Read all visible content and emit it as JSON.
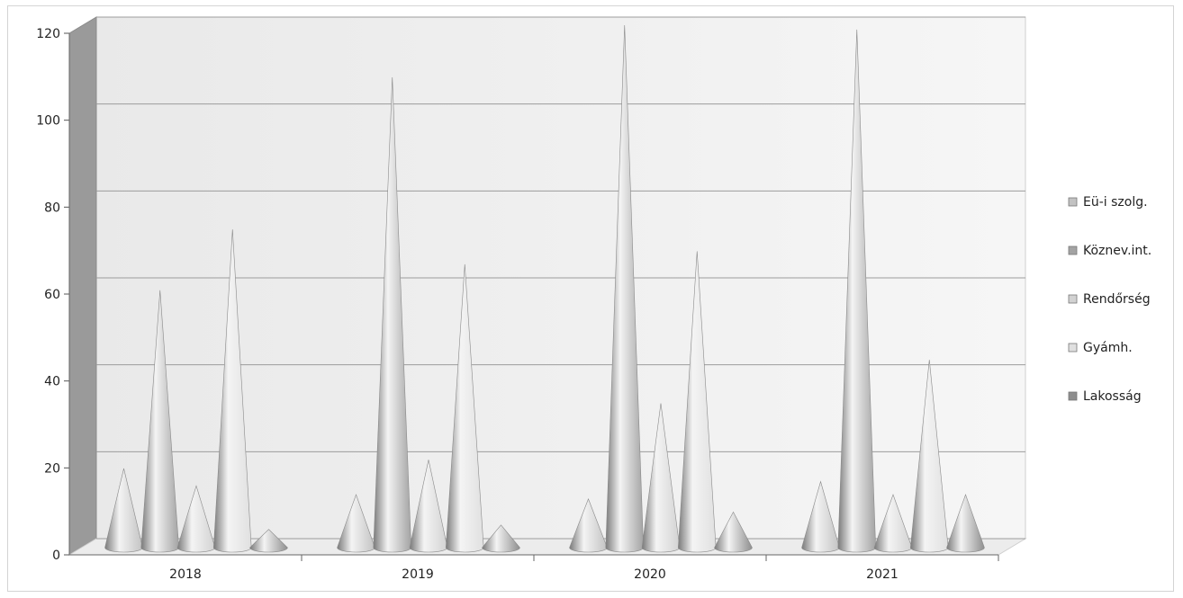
{
  "chart_data": {
    "type": "bar",
    "bar_shape": "cone-3d",
    "title": "",
    "xlabel": "",
    "ylabel": "",
    "ylim": [
      0,
      120
    ],
    "yticks": [
      "0",
      "20",
      "40",
      "60",
      "80",
      "100",
      "120"
    ],
    "categories": [
      "2018",
      "2019",
      "2020",
      "2021"
    ],
    "series": [
      {
        "name": "Eü-i szolg.",
        "values": [
          18,
          12,
          11,
          15
        ],
        "color": "#c2c2c2"
      },
      {
        "name": "Köznev.int.",
        "values": [
          59,
          108,
          120,
          119
        ],
        "color": "#a3a3a3"
      },
      {
        "name": "Rendőrség",
        "values": [
          14,
          20,
          33,
          12
        ],
        "color": "#d2d2d2"
      },
      {
        "name": "Gyámh.",
        "values": [
          73,
          65,
          68,
          43
        ],
        "color": "#e0e0e0"
      },
      {
        "name": "Lakosság",
        "values": [
          4,
          5,
          8,
          12
        ],
        "color": "#8e8e8e"
      }
    ],
    "grid": true,
    "legend_position": "right"
  }
}
